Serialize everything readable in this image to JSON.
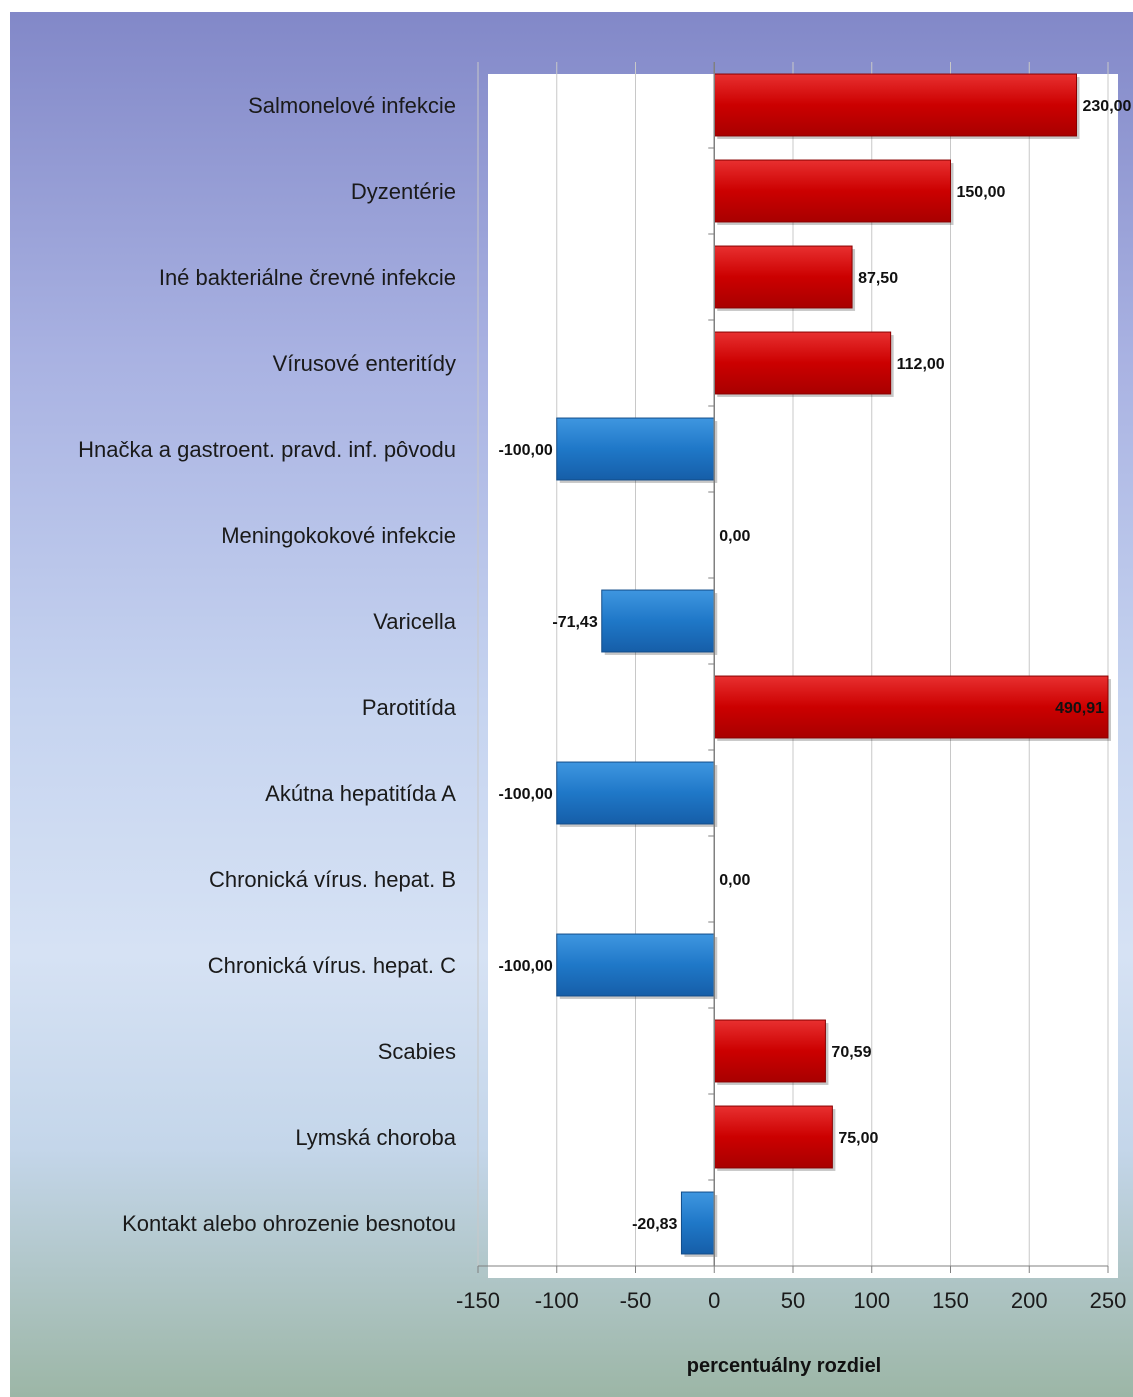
{
  "chart_data": {
    "type": "bar",
    "orientation": "horizontal",
    "categories": [
      "Salmonelové infekcie",
      "Dyzentérie",
      "Iné bakteriálne črevné infekcie",
      "Vírusové enteritídy",
      "Hnačka a gastroent. pravd. inf. pôvodu",
      "Meningokokové infekcie",
      "Varicella",
      "Parotitída",
      "Akútna hepatitída A",
      "Chronická vírus. hepat. B",
      "Chronická vírus. hepat. C",
      "Scabies",
      "Lymská choroba",
      "Kontakt alebo ohrozenie besnotou"
    ],
    "values": [
      230.0,
      150.0,
      87.5,
      112.0,
      -100.0,
      0.0,
      -71.43,
      490.91,
      -100.0,
      0.0,
      -100.0,
      70.59,
      75.0,
      -20.83
    ],
    "value_labels": [
      "230,00",
      "150,00",
      "87,50",
      "112,00",
      "-100,00",
      "0,00",
      "-71,43",
      "490,91",
      "-100,00",
      "0,00",
      "-100,00",
      "70,59",
      "75,00",
      "-20,83"
    ],
    "xlabel": "percentuálny rozdiel",
    "ylabel": "",
    "title": "",
    "xlim": [
      -150,
      250
    ],
    "xticks": [
      "-150",
      "-100",
      "-50",
      "0",
      "50",
      "100",
      "150",
      "200",
      "250"
    ],
    "grid": "vertical",
    "colors": {
      "positive": "#cc0000",
      "negative": "#1f78c8"
    }
  }
}
